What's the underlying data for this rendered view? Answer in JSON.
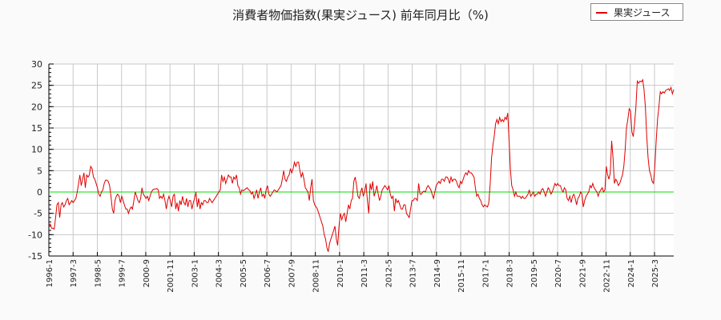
{
  "chart_data": {
    "type": "line",
    "title": "消費者物価指数(果実ジュース) 前年同月比（%)",
    "xlabel": "",
    "ylabel": "",
    "ylim": [
      -15,
      30
    ],
    "yticks": [
      30,
      25,
      20,
      15,
      10,
      5,
      0,
      -5,
      -10,
      -15
    ],
    "grid": true,
    "legend_position": "top-right",
    "start_month": "1996-1",
    "xtick_labels": [
      "1996-1",
      "1997-3",
      "1998-5",
      "1999-7",
      "2000-9",
      "2001-11",
      "2003-1",
      "2004-3",
      "2005-5",
      "2006-7",
      "2007-9",
      "2008-11",
      "2010-1",
      "2011-3",
      "2012-5",
      "2013-7",
      "2014-9",
      "2015-11",
      "2017-1",
      "2018-3",
      "2019-5",
      "2020-7",
      "2021-9",
      "2022-11",
      "2024-1",
      "2025-3"
    ],
    "series": [
      {
        "name": "果実ジュース",
        "color": "#e00000",
        "values": [
          -8,
          -7.5,
          -8.5,
          -8.5,
          -8.7,
          -6,
          -3,
          -2.5,
          -6,
          -3,
          -2.5,
          -3.5,
          -3,
          -2,
          -1.5,
          -3,
          -2.5,
          -2,
          -2.5,
          -2,
          -1.5,
          0,
          2,
          4,
          1.5,
          3,
          4.5,
          1,
          4,
          3.5,
          4,
          6,
          5.5,
          3.5,
          3,
          2,
          1,
          -0.5,
          -1,
          0,
          0.5,
          2,
          2.8,
          2.8,
          2.5,
          1.5,
          -1,
          -4,
          -5,
          -2,
          -1,
          -0.5,
          -1,
          -2.5,
          -1,
          -2,
          -3,
          -4,
          -4,
          -5,
          -4,
          -3.5,
          -4,
          -2,
          0,
          -1,
          -2,
          -2.5,
          -1.5,
          1,
          -0.5,
          -1,
          -1.5,
          -1,
          -2,
          -1,
          0,
          0.5,
          0.7,
          0.7,
          0.8,
          0.5,
          -1.5,
          -1,
          -1.5,
          -0.5,
          -2,
          -4,
          -2,
          -1,
          -2,
          -3.5,
          -1,
          -0.5,
          -4,
          -2.5,
          -4.5,
          -2,
          -3,
          -1,
          -2.5,
          -3,
          -1.5,
          -3.5,
          -2,
          -2,
          -4,
          -2.5,
          -1.5,
          0,
          -3.5,
          -1.5,
          -4,
          -2.5,
          -3,
          -2,
          -2,
          -2.5,
          -2.5,
          -1.5,
          -2,
          -2.5,
          -2,
          -1.5,
          -1,
          -0.5,
          0,
          0.5,
          4,
          2.5,
          3.5,
          2,
          3,
          4,
          3.5,
          3.5,
          2,
          3.5,
          3,
          4,
          1.5,
          1,
          -0.5,
          0.5,
          0.3,
          0.5,
          0.8,
          1,
          0.5,
          0.3,
          -0.5,
          0,
          -1.5,
          -0.5,
          0.5,
          -1.5,
          0,
          1,
          -1,
          -0.5,
          -1.5,
          0.5,
          1.5,
          -0.5,
          -1,
          -0.5,
          0,
          0.5,
          0.3,
          0,
          0.5,
          1,
          1.5,
          3,
          5,
          3,
          2.5,
          3.5,
          4,
          5.5,
          4.5,
          5.5,
          7,
          6,
          7,
          7,
          5,
          3.5,
          4.5,
          3,
          1,
          0.5,
          0,
          -2,
          1,
          3,
          -2,
          -3,
          -3.5,
          -4,
          -5,
          -6,
          -7,
          -8,
          -10,
          -11,
          -13,
          -14,
          -12,
          -11,
          -10,
          -9,
          -8,
          -11,
          -12.5,
          -8,
          -5,
          -6.5,
          -5.5,
          -5,
          -7,
          -5,
          -3,
          -4,
          -2,
          -1.5,
          2.5,
          3.5,
          1.5,
          -1,
          -1.5,
          0,
          1,
          -1,
          0,
          2,
          -2,
          -5,
          2,
          0.5,
          2.5,
          -1,
          0,
          1.5,
          -0.5,
          -2,
          -1,
          0.5,
          1,
          1.5,
          1,
          0.5,
          1.5,
          -0.5,
          -1.5,
          -1,
          -4.5,
          -1.5,
          -2.5,
          -2,
          -3,
          -4,
          -4,
          -3,
          -3,
          -5,
          -5.5,
          -6,
          -4,
          -2,
          -2,
          -1.5,
          -1.5,
          -2,
          2,
          -0.5,
          -0.5,
          0,
          0.2,
          0,
          1,
          1.5,
          1,
          0.5,
          -0.5,
          -1.5,
          0,
          1.5,
          2,
          2.5,
          2,
          3,
          3,
          2.5,
          3.5,
          3.5,
          3,
          2,
          3.5,
          2.5,
          3,
          3,
          2.5,
          1.5,
          1,
          2.5,
          2,
          3,
          4,
          4.5,
          4,
          5,
          4.5,
          4.5,
          4,
          3.5,
          1,
          -1,
          -0.5,
          -1.5,
          -2,
          -3,
          -3.5,
          -3,
          -3.3,
          -3.5,
          -2.5,
          2,
          8,
          11,
          13,
          16,
          17,
          16,
          17.5,
          16.5,
          17,
          16.5,
          17.5,
          17,
          18.5,
          12,
          5,
          1.5,
          0.5,
          -1,
          0,
          -1,
          -1,
          -1,
          -1.5,
          -1,
          -1.5,
          -1.5,
          -1,
          -0.5,
          0.5,
          -1,
          -0.5,
          0,
          -1,
          -0.5,
          -0.5,
          0,
          -0.5,
          0.5,
          0.8,
          0,
          -1,
          0,
          1,
          0.5,
          -0.5,
          0,
          1,
          2,
          1.5,
          2,
          1.5,
          1.5,
          0.5,
          0,
          1,
          0.5,
          -1.5,
          -2,
          -1,
          -2.5,
          -1,
          -0.5,
          -1.5,
          -3,
          -1.5,
          -1,
          0,
          -0.5,
          -3.5,
          -2,
          -1,
          -0.5,
          0,
          1.5,
          1,
          2,
          1,
          0.5,
          0,
          -1,
          0,
          0.5,
          1,
          0,
          0.5,
          6,
          4,
          3,
          4.5,
          12,
          8,
          2,
          3,
          2.5,
          1.5,
          2,
          3,
          4,
          6,
          10,
          15,
          17,
          19.5,
          19,
          14,
          13,
          16,
          20,
          26,
          25.5,
          26,
          25.8,
          26.3,
          24,
          20,
          13,
          8,
          5,
          4,
          2.5,
          2,
          6,
          12,
          17,
          20,
          23.5,
          23,
          23.5,
          23.2,
          23.8,
          24,
          24.2,
          23.8,
          24.5,
          23,
          24
        ]
      }
    ]
  },
  "legend": {
    "label": "果実ジュース"
  },
  "title": "消費者物価指数(果実ジュース) 前年同月比（%)"
}
